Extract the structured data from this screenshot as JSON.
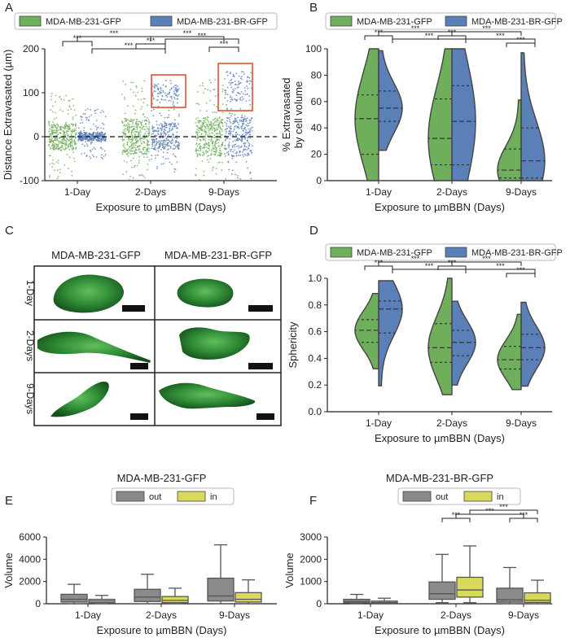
{
  "chart_data": [
    {
      "panel": "A",
      "type": "scatter",
      "categories": [
        "1-Day",
        "2-Days",
        "9-Days"
      ],
      "series": [
        {
          "name": "MDA-MB-231-GFP",
          "color": "#6fae5b",
          "summary": [
            {
              "center": 0,
              "core_range": [
                -30,
                30
              ],
              "range": [
                -95,
                100
              ]
            },
            {
              "center": 0,
              "core_range": [
                -40,
                40
              ],
              "range": [
                -100,
                130
              ]
            },
            {
              "center": 0,
              "core_range": [
                -45,
                45
              ],
              "range": [
                -100,
                130
              ]
            }
          ]
        },
        {
          "name": "MDA-MB-231-BR-GFP",
          "color": "#5b80b8",
          "summary": [
            {
              "center": 0,
              "core_range": [
                -10,
                10
              ],
              "range": [
                -50,
                65
              ]
            },
            {
              "center": 0,
              "core_range": [
                -30,
                30
              ],
              "range": [
                -80,
                130
              ],
              "upper_cluster": [
                80,
                120
              ]
            },
            {
              "center": 0,
              "core_range": [
                -45,
                45
              ],
              "range": [
                -100,
                148
              ],
              "upper_cluster": [
                80,
                148
              ]
            }
          ]
        }
      ],
      "xlabel": "Exposure to µmBBN (Days)",
      "ylabel": "Distance Extravasated (µm)",
      "ylim": [
        -100,
        200
      ],
      "yticks": [
        -100,
        0,
        100,
        200
      ],
      "legend": "top"
    },
    {
      "panel": "B",
      "type": "violin",
      "categories": [
        "1-Day",
        "2-Days",
        "9-Days"
      ],
      "series": [
        {
          "name": "MDA-MB-231-GFP",
          "color": "#6fae5b",
          "quartiles": [
            [
              20,
              47,
              65
            ],
            [
              12,
              32,
              62
            ],
            [
              2,
              8,
              24
            ]
          ]
        },
        {
          "name": "MDA-MB-231-BR-GFP",
          "color": "#5b80b8",
          "quartiles": [
            [
              45,
              55,
              68
            ],
            [
              12,
              45,
              72
            ],
            [
              2,
              15,
              40
            ]
          ]
        }
      ],
      "xlabel": "Exposure to µmBBN (Days)",
      "ylabel": "% Extravasated by cell volume",
      "ylim": [
        0,
        100
      ],
      "yticks": [
        0,
        20,
        40,
        60,
        80,
        100
      ],
      "legend": "top"
    },
    {
      "panel": "D",
      "type": "violin",
      "categories": [
        "1-Day",
        "2-Days",
        "9-Days"
      ],
      "series": [
        {
          "name": "MDA-MB-231-GFP",
          "color": "#6fae5b",
          "quartiles": [
            [
              0.52,
              0.61,
              0.69
            ],
            [
              0.37,
              0.48,
              0.66
            ],
            [
              0.32,
              0.39,
              0.49
            ]
          ]
        },
        {
          "name": "MDA-MB-231-BR-GFP",
          "color": "#5b80b8",
          "quartiles": [
            [
              0.59,
              0.77,
              0.83
            ],
            [
              0.42,
              0.52,
              0.61
            ],
            [
              0.39,
              0.48,
              0.58
            ]
          ]
        }
      ],
      "xlabel": "Exposure to µmBBN (Days)",
      "ylabel": "Sphericity",
      "ylim": [
        0,
        1
      ],
      "yticks": [
        0.0,
        0.2,
        0.4,
        0.6,
        0.8,
        1.0
      ],
      "legend": "top"
    },
    {
      "panel": "E",
      "type": "box",
      "title": "MDA-MB-231-GFP",
      "categories": [
        "1-Day",
        "2-Days",
        "9-Days"
      ],
      "series": [
        {
          "name": "out",
          "color": "#8a8c8a",
          "boxes": [
            [
              0,
              150,
              400,
              850,
              1750
            ],
            [
              0,
              200,
              600,
              1300,
              2650
            ],
            [
              0,
              250,
              700,
              2300,
              5300
            ]
          ]
        },
        {
          "name": "in",
          "color": "#dada5a",
          "boxes": [
            [
              0,
              100,
              250,
              400,
              750
            ],
            [
              0,
              100,
              300,
              650,
              1400
            ],
            [
              0,
              150,
              400,
              1000,
              2150
            ]
          ]
        }
      ],
      "xlabel": "Exposure to µmBBN (Days)",
      "ylabel": "Volume",
      "ylim": [
        0,
        6000
      ],
      "yticks": [
        0,
        2000,
        4000,
        6000
      ],
      "legend": "top"
    },
    {
      "panel": "F",
      "type": "box",
      "title": "MDA-MB-231-BR-GFP",
      "categories": [
        "1-Day",
        "2-Days",
        "9-Days"
      ],
      "series": [
        {
          "name": "out",
          "color": "#8a8c8a",
          "boxes": [
            [
              0,
              40,
              100,
              200,
              420
            ],
            [
              50,
              200,
              450,
              980,
              2220
            ],
            [
              0,
              70,
              180,
              700,
              1630
            ]
          ]
        },
        {
          "name": "in",
          "color": "#dada5a",
          "boxes": [
            [
              0,
              20,
              60,
              120,
              250
            ],
            [
              50,
              300,
              620,
              1190,
              2600
            ],
            [
              0,
              60,
              160,
              490,
              1060
            ]
          ]
        }
      ],
      "xlabel": "Exposure to µmBBN (Days)",
      "ylabel": "Volume",
      "ylim": [
        0,
        3000
      ],
      "yticks": [
        0,
        1000,
        2000,
        3000
      ],
      "legend": "top"
    }
  ],
  "images": {
    "panel": "C",
    "columns": [
      "MDA-MB-231-GFP",
      "MDA-MB-231-BR-GFP"
    ],
    "rows": [
      "1-Day",
      "2-Days",
      "9-Days"
    ]
  },
  "panel_labels": [
    "A",
    "B",
    "C",
    "D",
    "E",
    "F"
  ],
  "significance_label": "***"
}
